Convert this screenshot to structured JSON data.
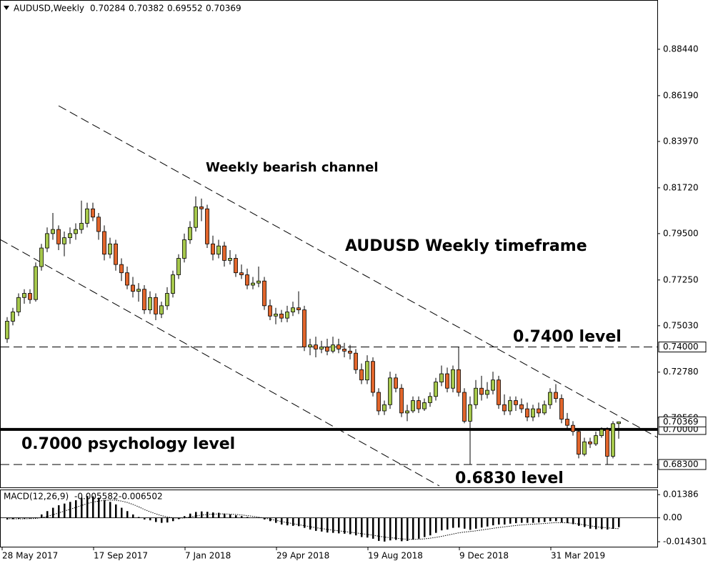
{
  "chart_data": {
    "type": "candlestick",
    "symbol": "AUDUSD,Weekly",
    "up_color": "#a6c84c",
    "down_color": "#e2662c",
    "categories": [
      "28 May 2017",
      null,
      null,
      null,
      null,
      null,
      null,
      null,
      null,
      null,
      null,
      null,
      null,
      null,
      null,
      null,
      "17 Sep 2017",
      null,
      null,
      null,
      null,
      null,
      null,
      null,
      null,
      null,
      null,
      null,
      null,
      null,
      null,
      null,
      "7 Jan 2018",
      null,
      null,
      null,
      null,
      null,
      null,
      null,
      null,
      null,
      null,
      null,
      null,
      null,
      null,
      null,
      "29 Apr 2018",
      null,
      null,
      null,
      null,
      null,
      null,
      null,
      null,
      null,
      null,
      null,
      null,
      null,
      null,
      null,
      "19 Aug 2018",
      null,
      null,
      null,
      null,
      null,
      null,
      null,
      null,
      null,
      null,
      null,
      null,
      null,
      null,
      null,
      "9 Dec 2018",
      null,
      null,
      null,
      null,
      null,
      null,
      null,
      null,
      null,
      null,
      null,
      null,
      null,
      null,
      null,
      "31 Mar 2019",
      null,
      null,
      null,
      null,
      null,
      null,
      null,
      null,
      null,
      null,
      null
    ],
    "candles": [
      [
        0.744,
        0.7545,
        0.742,
        0.7525
      ],
      [
        0.7525,
        0.759,
        0.7505,
        0.757
      ],
      [
        0.757,
        0.766,
        0.755,
        0.764
      ],
      [
        0.764,
        0.768,
        0.761,
        0.766
      ],
      [
        0.766,
        0.768,
        0.761,
        0.763
      ],
      [
        0.763,
        0.781,
        0.762,
        0.779
      ],
      [
        0.779,
        0.79,
        0.777,
        0.788
      ],
      [
        0.788,
        0.798,
        0.786,
        0.795
      ],
      [
        0.795,
        0.805,
        0.792,
        0.797
      ],
      [
        0.797,
        0.799,
        0.787,
        0.79
      ],
      [
        0.79,
        0.796,
        0.784,
        0.793
      ],
      [
        0.793,
        0.798,
        0.79,
        0.795
      ],
      [
        0.795,
        0.8,
        0.792,
        0.797
      ],
      [
        0.797,
        0.811,
        0.795,
        0.8
      ],
      [
        0.8,
        0.81,
        0.798,
        0.807
      ],
      [
        0.807,
        0.81,
        0.801,
        0.803
      ],
      [
        0.803,
        0.805,
        0.792,
        0.796
      ],
      [
        0.796,
        0.799,
        0.782,
        0.785
      ],
      [
        0.785,
        0.793,
        0.783,
        0.79
      ],
      [
        0.79,
        0.792,
        0.777,
        0.78
      ],
      [
        0.78,
        0.783,
        0.772,
        0.776
      ],
      [
        0.776,
        0.779,
        0.768,
        0.77
      ],
      [
        0.77,
        0.774,
        0.764,
        0.767
      ],
      [
        0.767,
        0.771,
        0.762,
        0.768
      ],
      [
        0.768,
        0.77,
        0.756,
        0.758
      ],
      [
        0.758,
        0.767,
        0.756,
        0.764
      ],
      [
        0.764,
        0.766,
        0.753,
        0.756
      ],
      [
        0.756,
        0.762,
        0.754,
        0.76
      ],
      [
        0.76,
        0.769,
        0.758,
        0.766
      ],
      [
        0.766,
        0.777,
        0.764,
        0.775
      ],
      [
        0.775,
        0.785,
        0.773,
        0.783
      ],
      [
        0.783,
        0.795,
        0.781,
        0.792
      ],
      [
        0.792,
        0.801,
        0.79,
        0.798
      ],
      [
        0.798,
        0.813,
        0.796,
        0.808
      ],
      [
        0.808,
        0.812,
        0.801,
        0.807
      ],
      [
        0.807,
        0.809,
        0.788,
        0.79
      ],
      [
        0.79,
        0.794,
        0.782,
        0.785
      ],
      [
        0.785,
        0.792,
        0.783,
        0.789
      ],
      [
        0.789,
        0.791,
        0.779,
        0.782
      ],
      [
        0.782,
        0.787,
        0.78,
        0.783
      ],
      [
        0.783,
        0.785,
        0.774,
        0.776
      ],
      [
        0.776,
        0.78,
        0.773,
        0.775
      ],
      [
        0.775,
        0.778,
        0.768,
        0.77
      ],
      [
        0.77,
        0.774,
        0.768,
        0.771
      ],
      [
        0.771,
        0.779,
        0.769,
        0.772
      ],
      [
        0.772,
        0.774,
        0.758,
        0.76
      ],
      [
        0.76,
        0.763,
        0.753,
        0.755
      ],
      [
        0.755,
        0.759,
        0.751,
        0.756
      ],
      [
        0.756,
        0.758,
        0.752,
        0.754
      ],
      [
        0.754,
        0.76,
        0.752,
        0.757
      ],
      [
        0.757,
        0.762,
        0.755,
        0.759
      ],
      [
        0.759,
        0.767,
        0.756,
        0.758
      ],
      [
        0.758,
        0.76,
        0.738,
        0.74
      ],
      [
        0.74,
        0.744,
        0.736,
        0.741
      ],
      [
        0.741,
        0.745,
        0.735,
        0.739
      ],
      [
        0.739,
        0.743,
        0.737,
        0.74
      ],
      [
        0.74,
        0.744,
        0.736,
        0.738
      ],
      [
        0.738,
        0.745,
        0.737,
        0.741
      ],
      [
        0.741,
        0.744,
        0.737,
        0.739
      ],
      [
        0.739,
        0.742,
        0.735,
        0.738
      ],
      [
        0.738,
        0.741,
        0.734,
        0.737
      ],
      [
        0.737,
        0.739,
        0.727,
        0.729
      ],
      [
        0.729,
        0.732,
        0.722,
        0.724
      ],
      [
        0.724,
        0.736,
        0.722,
        0.733
      ],
      [
        0.733,
        0.735,
        0.716,
        0.718
      ],
      [
        0.718,
        0.72,
        0.707,
        0.709
      ],
      [
        0.709,
        0.714,
        0.707,
        0.712
      ],
      [
        0.712,
        0.728,
        0.71,
        0.725
      ],
      [
        0.725,
        0.727,
        0.718,
        0.72
      ],
      [
        0.72,
        0.722,
        0.706,
        0.708
      ],
      [
        0.708,
        0.712,
        0.704,
        0.709
      ],
      [
        0.709,
        0.716,
        0.708,
        0.714
      ],
      [
        0.714,
        0.716,
        0.708,
        0.71
      ],
      [
        0.71,
        0.715,
        0.709,
        0.713
      ],
      [
        0.713,
        0.718,
        0.711,
        0.716
      ],
      [
        0.716,
        0.725,
        0.714,
        0.723
      ],
      [
        0.723,
        0.731,
        0.721,
        0.727
      ],
      [
        0.727,
        0.73,
        0.718,
        0.72
      ],
      [
        0.72,
        0.731,
        0.718,
        0.729
      ],
      [
        0.729,
        0.74,
        0.716,
        0.718
      ],
      [
        0.718,
        0.72,
        0.703,
        0.704
      ],
      [
        0.704,
        0.716,
        0.683,
        0.712
      ],
      [
        0.712,
        0.724,
        0.71,
        0.72
      ],
      [
        0.72,
        0.726,
        0.714,
        0.717
      ],
      [
        0.717,
        0.723,
        0.715,
        0.719
      ],
      [
        0.719,
        0.728,
        0.717,
        0.724
      ],
      [
        0.724,
        0.726,
        0.71,
        0.712
      ],
      [
        0.712,
        0.717,
        0.707,
        0.709
      ],
      [
        0.709,
        0.716,
        0.707,
        0.714
      ],
      [
        0.714,
        0.716,
        0.709,
        0.712
      ],
      [
        0.712,
        0.715,
        0.708,
        0.71
      ],
      [
        0.71,
        0.713,
        0.704,
        0.706
      ],
      [
        0.706,
        0.712,
        0.704,
        0.71
      ],
      [
        0.71,
        0.713,
        0.706,
        0.708
      ],
      [
        0.708,
        0.714,
        0.707,
        0.712
      ],
      [
        0.712,
        0.72,
        0.71,
        0.718
      ],
      [
        0.718,
        0.722,
        0.713,
        0.715
      ],
      [
        0.715,
        0.717,
        0.703,
        0.705
      ],
      [
        0.705,
        0.708,
        0.7,
        0.702
      ],
      [
        0.702,
        0.704,
        0.697,
        0.699
      ],
      [
        0.699,
        0.7,
        0.686,
        0.688
      ],
      [
        0.688,
        0.696,
        0.687,
        0.694
      ],
      [
        0.694,
        0.696,
        0.691,
        0.693
      ],
      [
        0.693,
        0.699,
        0.692,
        0.697
      ],
      [
        0.697,
        0.701,
        0.696,
        0.7
      ],
      [
        0.7,
        0.701,
        0.683,
        0.687
      ],
      [
        0.687,
        0.704,
        0.686,
        0.7028
      ],
      [
        0.70284,
        0.70382,
        0.69552,
        0.70369
      ]
    ],
    "ylim": [
      0.6719,
      0.9083
    ],
    "yticks": [
      {
        "value": 0.8844,
        "label": "0.88440"
      },
      {
        "value": 0.8619,
        "label": "0.86190"
      },
      {
        "value": 0.8397,
        "label": "0.83970"
      },
      {
        "value": 0.8172,
        "label": "0.81720"
      },
      {
        "value": 0.795,
        "label": "0.79500"
      },
      {
        "value": 0.7725,
        "label": "0.77250"
      },
      {
        "value": 0.7503,
        "label": "0.75030"
      },
      {
        "value": 0.7278,
        "label": "0.72780"
      },
      {
        "value": 0.7056,
        "label": "0.70560"
      }
    ],
    "levels": [
      {
        "value": 0.74,
        "label": "0.74000",
        "text": "0.7400 level",
        "style": "dashed"
      },
      {
        "value": 0.7,
        "label": "0.70000",
        "text": "0.7000 psychology level",
        "style": "solid"
      },
      {
        "value": 0.683,
        "label": "0.68300",
        "text": "0.6830 level",
        "style": "dashed"
      }
    ],
    "annotations": [
      "Weekly bearish channel",
      "AUDUSD Weekly timeframe"
    ],
    "macd": {
      "title": "MACD(12,26,9)",
      "ylim": [
        -0.0177,
        0.0169
      ],
      "yticks": [
        0.01386,
        {
          "value": 0,
          "label": "0.00"
        },
        -0.014301
      ],
      "histogram": [
        -0.001,
        -0.0008,
        -0.0006,
        -0.0005,
        -0.0004,
        0.0002,
        0.002,
        0.004,
        0.006,
        0.0075,
        0.0085,
        0.0095,
        0.0105,
        0.012,
        0.013,
        0.0128,
        0.012,
        0.0105,
        0.0095,
        0.008,
        0.006,
        0.004,
        0.002,
        0.0005,
        -0.001,
        -0.0015,
        -0.0025,
        -0.003,
        -0.0028,
        -0.002,
        -0.0008,
        0.001,
        0.0025,
        0.0035,
        0.0038,
        0.0036,
        0.0032,
        0.003,
        0.0025,
        0.002,
        0.0015,
        0.001,
        0.0005,
        0.0002,
        -0.0002,
        -0.001,
        -0.002,
        -0.003,
        -0.004,
        -0.0045,
        -0.0048,
        -0.005,
        -0.006,
        -0.007,
        -0.0078,
        -0.0082,
        -0.0088,
        -0.009,
        -0.0093,
        -0.0095,
        -0.0098,
        -0.0105,
        -0.0115,
        -0.0118,
        -0.0125,
        -0.0138,
        -0.0142,
        -0.0135,
        -0.0132,
        -0.014,
        -0.0138,
        -0.013,
        -0.0125,
        -0.0115,
        -0.0105,
        -0.009,
        -0.0075,
        -0.007,
        -0.006,
        -0.0058,
        -0.0065,
        -0.0072,
        -0.0065,
        -0.0058,
        -0.0052,
        -0.0045,
        -0.004,
        -0.004,
        -0.0035,
        -0.0032,
        -0.003,
        -0.003,
        -0.003,
        -0.0028,
        -0.0025,
        -0.002,
        -0.002,
        -0.0028,
        -0.0032,
        -0.0038,
        -0.0048,
        -0.0055,
        -0.0065,
        -0.0068,
        -0.0068,
        -0.007,
        -0.0066,
        -0.005582
      ],
      "signal": [
        -0.0005,
        -0.0006,
        -0.0006,
        -0.0006,
        -0.0005,
        -0.0004,
        0.0001,
        0.0008,
        0.0018,
        0.0029,
        0.004,
        0.0051,
        0.0062,
        0.0073,
        0.0085,
        0.0094,
        0.01,
        0.0104,
        0.0106,
        0.0105,
        0.01,
        0.0092,
        0.008,
        0.0066,
        0.005,
        0.0036,
        0.0024,
        0.0013,
        0.0005,
        0,
        -0.0002,
        -0.0001,
        0.0005,
        0.0011,
        0.0016,
        0.002,
        0.0022,
        0.0023,
        0.0023,
        0.0022,
        0.002,
        0.0017,
        0.0013,
        0.0009,
        0.0004,
        -0.0002,
        -0.0008,
        -0.0015,
        -0.0022,
        -0.0029,
        -0.0035,
        -0.0041,
        -0.0047,
        -0.0053,
        -0.0059,
        -0.0064,
        -0.0069,
        -0.0074,
        -0.0078,
        -0.0082,
        -0.0086,
        -0.009,
        -0.0095,
        -0.0099,
        -0.0104,
        -0.011,
        -0.0115,
        -0.0119,
        -0.0122,
        -0.0126,
        -0.0128,
        -0.0129,
        -0.0128,
        -0.0126,
        -0.0122,
        -0.0117,
        -0.0111,
        -0.0104,
        -0.0097,
        -0.009,
        -0.0085,
        -0.0082,
        -0.0078,
        -0.0073,
        -0.0068,
        -0.0063,
        -0.0058,
        -0.0054,
        -0.005,
        -0.0046,
        -0.0043,
        -0.004,
        -0.0038,
        -0.0036,
        -0.0034,
        -0.0031,
        -0.0029,
        -0.0029,
        -0.003,
        -0.0033,
        -0.0037,
        -0.0042,
        -0.0048,
        -0.0053,
        -0.0057,
        -0.006,
        -0.0063,
        -0.006502
      ]
    }
  }
}
